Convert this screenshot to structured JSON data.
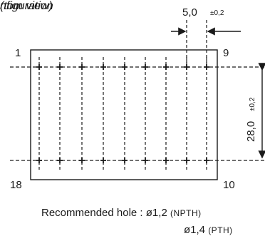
{
  "header": {
    "title_partial": "nfiguration",
    "subtitle_partial": "tom view)"
  },
  "dimensions": {
    "pitch": {
      "value": "5,0",
      "tolerance": "±0,2"
    },
    "row_spacing": {
      "value": "28,0",
      "tolerance": "±0,2"
    }
  },
  "pins": {
    "top_left": "1",
    "top_right": "9",
    "bottom_left": "18",
    "bottom_right": "10"
  },
  "note": {
    "label": "Recommended hole",
    "separator": ":",
    "npth_value": "ø1,2",
    "npth_type": "(NPTH)",
    "pth_value": "ø1,4",
    "pth_type": "(PTH)"
  },
  "colors": {
    "line": "#1a1a1a",
    "background": "#ffffff"
  }
}
